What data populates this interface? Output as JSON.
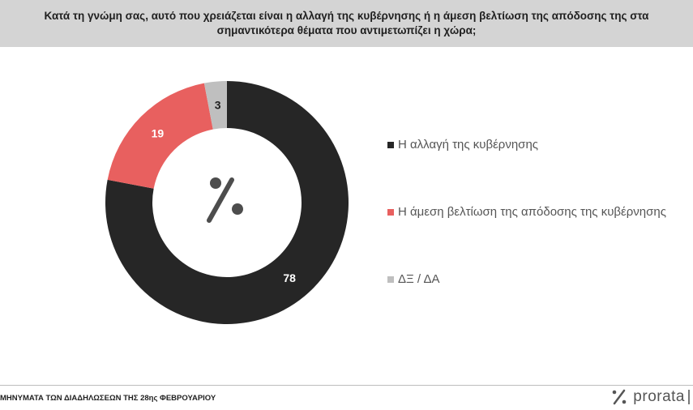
{
  "header": {
    "title": "Κατά τη γνώμη σας, αυτό που χρειάζεται είναι η αλλαγή της κυβέρνησης ή η άμεση βελτίωση της απόδοσης της στα σημαντικότερα θέματα που αντιμετωπίζει η χώρα;"
  },
  "chart_data": {
    "type": "pie",
    "style": "donut",
    "center_label": "%",
    "categories": [
      "Η αλλαγή της κυβέρνησης",
      "Η άμεση βελτίωση της απόδοσης της κυβέρνησης",
      "ΔΞ / ΔΑ"
    ],
    "values": [
      78,
      19,
      3
    ],
    "colors": [
      "#262626",
      "#e8605f",
      "#bfbfbf"
    ],
    "value_label_colors": [
      "#ffffff",
      "#ffffff",
      "#1f1f1f"
    ],
    "legend_placement": "right"
  },
  "footer": {
    "text": "ΜΗΝΥΜΑΤΑ ΤΩΝ ΔΙΑΔΗΛΩΣΕΩΝ ΤΗΣ 28ης ΦΕΒΡΟΥΑΡΙΟΥ",
    "brand": "prorata",
    "brand_icon": "percent-logo-icon"
  }
}
